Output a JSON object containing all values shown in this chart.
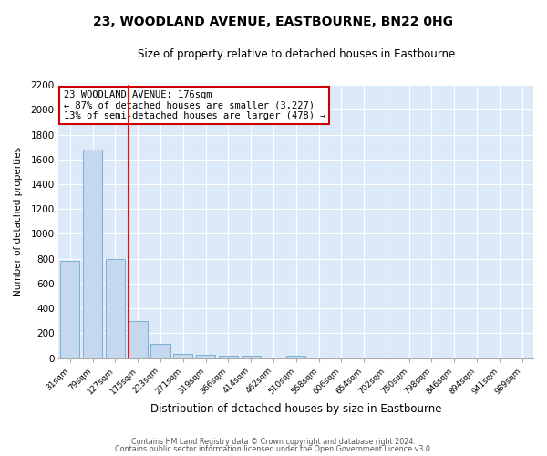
{
  "title": "23, WOODLAND AVENUE, EASTBOURNE, BN22 0HG",
  "subtitle": "Size of property relative to detached houses in Eastbourne",
  "xlabel": "Distribution of detached houses by size in Eastbourne",
  "ylabel": "Number of detached properties",
  "bar_labels": [
    "31sqm",
    "79sqm",
    "127sqm",
    "175sqm",
    "223sqm",
    "271sqm",
    "319sqm",
    "366sqm",
    "414sqm",
    "462sqm",
    "510sqm",
    "558sqm",
    "606sqm",
    "654sqm",
    "702sqm",
    "750sqm",
    "798sqm",
    "846sqm",
    "894sqm",
    "941sqm",
    "989sqm"
  ],
  "bar_values": [
    780,
    1680,
    800,
    300,
    115,
    35,
    25,
    20,
    20,
    0,
    20,
    0,
    0,
    0,
    0,
    0,
    0,
    0,
    0,
    0,
    0
  ],
  "bar_color": "#c5d8ee",
  "bar_edge_color": "#7aaed4",
  "red_line_index": 3,
  "annotation_title": "23 WOODLAND AVENUE: 176sqm",
  "annotation_line1": "← 87% of detached houses are smaller (3,227)",
  "annotation_line2": "13% of semi-detached houses are larger (478) →",
  "annotation_box_facecolor": "#ffffff",
  "annotation_box_edgecolor": "#cc0000",
  "ylim": [
    0,
    2200
  ],
  "yticks": [
    0,
    200,
    400,
    600,
    800,
    1000,
    1200,
    1400,
    1600,
    1800,
    2000,
    2200
  ],
  "plot_bg_color": "#dce9f8",
  "fig_bg_color": "#ffffff",
  "grid_color": "#ffffff",
  "footer_line1": "Contains HM Land Registry data © Crown copyright and database right 2024.",
  "footer_line2": "Contains public sector information licensed under the Open Government Licence v3.0."
}
